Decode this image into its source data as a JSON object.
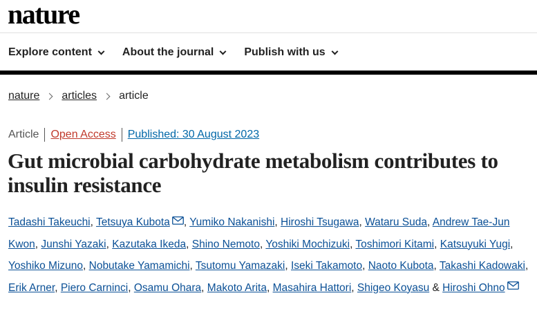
{
  "header": {
    "logo": "nature"
  },
  "nav": {
    "items": [
      {
        "label": "Explore content"
      },
      {
        "label": "About the journal"
      },
      {
        "label": "Publish with us"
      }
    ]
  },
  "breadcrumb": {
    "items": [
      "nature",
      "articles"
    ],
    "current": "article"
  },
  "meta": {
    "type": "Article",
    "access": "Open Access",
    "published": "Published: 30 August 2023"
  },
  "article": {
    "title": "Gut microbial carbohydrate metabolism contributes to insulin resistance"
  },
  "authors": {
    "list": [
      "Tadashi Takeuchi",
      "Tetsuya Kubota",
      "Yumiko Nakanishi",
      "Hiroshi Tsugawa",
      "Wataru Suda",
      "Andrew Tae-Jun Kwon",
      "Junshi Yazaki",
      "Kazutaka Ikeda",
      "Shino Nemoto",
      "Yoshiki Mochizuki",
      "Toshimori Kitami",
      "Katsuyuki Yugi",
      "Yoshiko Mizuno",
      "Nobutake Yamamichi",
      "Tsutomu Yamazaki",
      "Iseki Takamoto",
      "Naoto Kubota",
      "Takashi Kadowaki",
      "Erik Arner",
      "Piero Carninci",
      "Osamu Ohara",
      "Makoto Arita",
      "Masahira Hattori",
      "Shigeo Koyasu",
      "Hiroshi Ohno"
    ],
    "separator": ",",
    "conjunction": "&"
  },
  "icons": {
    "chevron": "chevron-down-icon",
    "mail": "mail-icon"
  }
}
